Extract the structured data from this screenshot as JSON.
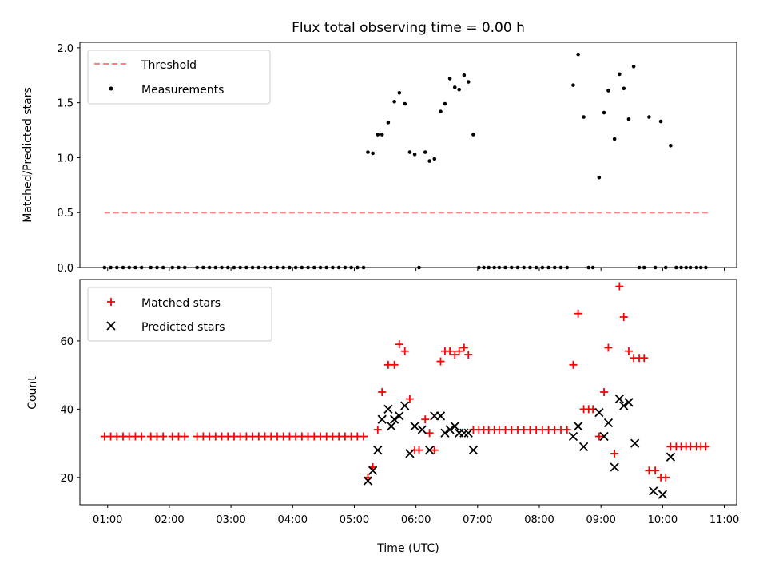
{
  "title": "Flux total observing time = 0.00 h",
  "xlabel": "Time (UTC)",
  "xticks": [
    "01:00",
    "02:00",
    "03:00",
    "04:00",
    "05:00",
    "06:00",
    "07:00",
    "08:00",
    "09:00",
    "10:00",
    "11:00"
  ],
  "colors": {
    "threshold": "#ff7f7f",
    "measurements": "#000000",
    "matched": "#ff0000",
    "predicted": "#000000"
  },
  "chart_data": [
    {
      "type": "scatter",
      "ylabel": "Matched/Predicted stars",
      "xlim": [
        0.55,
        11.2
      ],
      "ylim": [
        0,
        2.05
      ],
      "yticks": [
        0.0,
        0.5,
        1.0,
        1.5,
        2.0
      ],
      "legend_position": "upper-left",
      "series": [
        {
          "name": "Threshold",
          "style": "dashed-line",
          "x": [
            0.95,
            10.75
          ],
          "y": [
            0.5,
            0.5
          ]
        },
        {
          "name": "Measurements",
          "style": "dots",
          "x": [
            0.95,
            1.05,
            1.15,
            1.25,
            1.35,
            1.45,
            1.55,
            1.7,
            1.8,
            1.9,
            2.05,
            2.15,
            2.25,
            2.45,
            2.55,
            2.65,
            2.75,
            2.85,
            2.95,
            3.05,
            3.15,
            3.25,
            3.35,
            3.45,
            3.55,
            3.65,
            3.75,
            3.85,
            3.95,
            4.05,
            4.15,
            4.25,
            4.35,
            4.45,
            4.55,
            4.65,
            4.75,
            4.85,
            4.95,
            5.05,
            5.15,
            5.22,
            5.3,
            5.38,
            5.45,
            5.55,
            5.65,
            5.73,
            5.82,
            5.9,
            5.98,
            6.05,
            6.15,
            6.22,
            6.3,
            6.4,
            6.47,
            6.55,
            6.63,
            6.7,
            6.78,
            6.85,
            6.93,
            7.02,
            7.1,
            7.18,
            7.27,
            7.35,
            7.45,
            7.55,
            7.65,
            7.75,
            7.85,
            7.95,
            8.05,
            8.15,
            8.25,
            8.35,
            8.45,
            8.55,
            8.63,
            8.72,
            8.8,
            8.87,
            8.97,
            9.05,
            9.12,
            9.22,
            9.3,
            9.37,
            9.45,
            9.53,
            9.62,
            9.7,
            9.78,
            9.88,
            9.97,
            10.05,
            10.13,
            10.22,
            10.3,
            10.38,
            10.45,
            10.55,
            10.62,
            10.7
          ],
          "y": [
            0,
            0,
            0,
            0,
            0,
            0,
            0,
            0,
            0,
            0,
            0,
            0,
            0,
            0,
            0,
            0,
            0,
            0,
            0,
            0,
            0,
            0,
            0,
            0,
            0,
            0,
            0,
            0,
            0,
            0,
            0,
            0,
            0,
            0,
            0,
            0,
            0,
            0,
            0,
            0,
            0,
            1.05,
            1.04,
            1.21,
            1.21,
            1.32,
            1.51,
            1.59,
            1.49,
            1.05,
            1.03,
            0,
            1.05,
            0.97,
            0.99,
            1.42,
            1.49,
            1.72,
            1.64,
            1.62,
            1.75,
            1.69,
            1.21,
            0,
            0,
            0,
            0,
            0,
            0,
            0,
            0,
            0,
            0,
            0,
            0,
            0,
            0,
            0,
            0,
            1.66,
            1.94,
            1.37,
            0,
            0,
            0.82,
            1.41,
            1.61,
            1.17,
            1.76,
            1.63,
            1.35,
            1.83,
            0,
            0,
            1.37,
            0,
            1.33,
            0,
            1.11,
            0,
            0,
            0,
            0,
            0,
            0,
            0
          ]
        }
      ]
    },
    {
      "type": "scatter",
      "ylabel": "Count",
      "xlim": [
        0.55,
        11.2
      ],
      "ylim": [
        12,
        78
      ],
      "yticks": [
        20,
        40,
        60
      ],
      "legend_position": "upper-left",
      "series": [
        {
          "name": "Matched stars",
          "style": "plus",
          "x": [
            0.95,
            1.05,
            1.15,
            1.25,
            1.35,
            1.45,
            1.55,
            1.7,
            1.8,
            1.9,
            2.05,
            2.15,
            2.25,
            2.45,
            2.55,
            2.65,
            2.75,
            2.85,
            2.95,
            3.05,
            3.15,
            3.25,
            3.35,
            3.45,
            3.55,
            3.65,
            3.75,
            3.85,
            3.95,
            4.05,
            4.15,
            4.25,
            4.35,
            4.45,
            4.55,
            4.65,
            4.75,
            4.85,
            4.95,
            5.05,
            5.15,
            5.22,
            5.3,
            5.38,
            5.45,
            5.55,
            5.65,
            5.73,
            5.82,
            5.9,
            5.98,
            6.05,
            6.15,
            6.22,
            6.3,
            6.4,
            6.47,
            6.55,
            6.63,
            6.7,
            6.78,
            6.85,
            6.93,
            7.02,
            7.1,
            7.18,
            7.27,
            7.35,
            7.45,
            7.55,
            7.65,
            7.75,
            7.85,
            7.95,
            8.05,
            8.15,
            8.25,
            8.35,
            8.45,
            8.55,
            8.63,
            8.72,
            8.8,
            8.87,
            8.97,
            9.05,
            9.12,
            9.22,
            9.3,
            9.37,
            9.45,
            9.53,
            9.62,
            9.7,
            9.78,
            9.88,
            9.97,
            10.05,
            10.13,
            10.22,
            10.3,
            10.38,
            10.45,
            10.55,
            10.62,
            10.7
          ],
          "y": [
            32,
            32,
            32,
            32,
            32,
            32,
            32,
            32,
            32,
            32,
            32,
            32,
            32,
            32,
            32,
            32,
            32,
            32,
            32,
            32,
            32,
            32,
            32,
            32,
            32,
            32,
            32,
            32,
            32,
            32,
            32,
            32,
            32,
            32,
            32,
            32,
            32,
            32,
            32,
            32,
            32,
            20,
            23,
            34,
            45,
            53,
            53,
            59,
            57,
            43,
            28,
            28,
            37,
            33,
            28,
            54,
            57,
            57,
            56,
            57,
            58,
            56,
            34,
            34,
            34,
            34,
            34,
            34,
            34,
            34,
            34,
            34,
            34,
            34,
            34,
            34,
            34,
            34,
            34,
            53,
            68,
            40,
            40,
            40,
            32,
            45,
            58,
            27,
            76,
            67,
            57,
            55,
            55,
            55,
            22,
            22,
            20,
            20,
            29,
            29,
            29,
            29,
            29,
            29,
            29,
            29
          ]
        },
        {
          "name": "Predicted stars",
          "style": "x",
          "x": [
            5.22,
            5.3,
            5.38,
            5.45,
            5.55,
            5.6,
            5.65,
            5.73,
            5.82,
            5.9,
            5.98,
            6.1,
            6.22,
            6.3,
            6.4,
            6.47,
            6.55,
            6.63,
            6.7,
            6.78,
            6.85,
            6.93,
            8.55,
            8.63,
            8.72,
            8.97,
            9.05,
            9.12,
            9.22,
            9.3,
            9.37,
            9.45,
            9.55,
            9.85,
            10.0,
            10.13
          ],
          "y": [
            19,
            22,
            28,
            37,
            40,
            35,
            37,
            38,
            41,
            27,
            35,
            34,
            28,
            38,
            38,
            33,
            34,
            35,
            33,
            33,
            33,
            28,
            32,
            35,
            29,
            39,
            32,
            36,
            23,
            43,
            41,
            42,
            30,
            16,
            15,
            26
          ]
        }
      ]
    }
  ]
}
